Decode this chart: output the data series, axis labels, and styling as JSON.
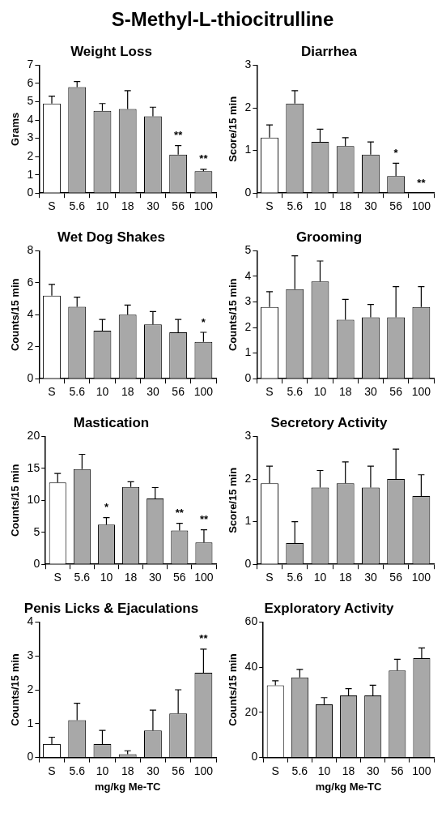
{
  "chart_data": [
    {
      "type": "other",
      "title": "S-Methyl-L-thiocitrulline"
    },
    {
      "type": "bar",
      "title": "Weight Loss",
      "ylabel": "Grams",
      "categories": [
        "S",
        "5.6",
        "10",
        "18",
        "30",
        "56",
        "100"
      ],
      "values": [
        4.9,
        5.8,
        4.5,
        4.6,
        4.2,
        2.1,
        1.2
      ],
      "errors": [
        0.4,
        0.3,
        0.4,
        1.0,
        0.5,
        0.5,
        0.1
      ],
      "colors": [
        "#ffffff",
        "#a8a8a8",
        "#a8a8a8",
        "#a8a8a8",
        "#a8a8a8",
        "#a8a8a8",
        "#a8a8a8"
      ],
      "ylim": [
        0,
        7
      ],
      "yticks": [
        0,
        1,
        2,
        3,
        4,
        5,
        6,
        7
      ],
      "grid": false,
      "legend": false,
      "annotations": [
        {
          "text": "**",
          "x": "56",
          "y": 2.6
        },
        {
          "text": "**",
          "x": "100",
          "y": 1.3
        }
      ]
    },
    {
      "type": "bar",
      "title": "Diarrhea",
      "ylabel": "Score/15 min",
      "categories": [
        "S",
        "5.6",
        "10",
        "18",
        "30",
        "56",
        "100"
      ],
      "values": [
        1.3,
        2.1,
        1.2,
        1.1,
        0.9,
        0.4,
        0
      ],
      "errors": [
        0.3,
        0.3,
        0.3,
        0.2,
        0.3,
        0.3,
        null
      ],
      "colors": [
        "#ffffff",
        "#a8a8a8",
        "#a8a8a8",
        "#a8a8a8",
        "#a8a8a8",
        "#a8a8a8",
        "#a8a8a8"
      ],
      "ylim": [
        0,
        3
      ],
      "yticks": [
        0,
        1,
        2,
        3
      ],
      "grid": false,
      "legend": false,
      "annotations": [
        {
          "text": "*",
          "x": "56",
          "y": 0.7
        },
        {
          "text": "**",
          "x": "100",
          "y": 0
        }
      ]
    },
    {
      "type": "bar",
      "title": "Wet Dog Shakes",
      "ylabel": "Counts/15 min",
      "categories": [
        "S",
        "5.6",
        "10",
        "18",
        "30",
        "56",
        "100"
      ],
      "values": [
        5.2,
        4.5,
        3.0,
        4.0,
        3.4,
        2.9,
        2.3
      ],
      "errors": [
        0.7,
        0.6,
        0.7,
        0.6,
        0.8,
        0.8,
        0.6
      ],
      "colors": [
        "#ffffff",
        "#a8a8a8",
        "#a8a8a8",
        "#a8a8a8",
        "#a8a8a8",
        "#a8a8a8",
        "#a8a8a8"
      ],
      "ylim": [
        0,
        8
      ],
      "yticks": [
        0,
        2,
        4,
        6,
        8
      ],
      "grid": false,
      "legend": false,
      "annotations": [
        {
          "text": "*",
          "x": "100",
          "y": 2.9
        }
      ]
    },
    {
      "type": "bar",
      "title": "Grooming",
      "ylabel": "Counts/15 min",
      "categories": [
        "S",
        "5.6",
        "10",
        "18",
        "30",
        "56",
        "100"
      ],
      "values": [
        2.8,
        3.5,
        3.8,
        2.3,
        2.4,
        2.4,
        2.8
      ],
      "errors": [
        0.6,
        1.3,
        0.8,
        0.8,
        0.5,
        1.2,
        0.8
      ],
      "colors": [
        "#ffffff",
        "#a8a8a8",
        "#a8a8a8",
        "#a8a8a8",
        "#a8a8a8",
        "#a8a8a8",
        "#a8a8a8"
      ],
      "ylim": [
        0,
        5
      ],
      "yticks": [
        0,
        1,
        2,
        3,
        4,
        5
      ],
      "grid": false,
      "legend": false
    },
    {
      "type": "bar",
      "title": "Mastication",
      "ylabel": "Counts/15 min",
      "categories": [
        "S",
        "5.6",
        "10",
        "18",
        "30",
        "56",
        "100"
      ],
      "values": [
        12.8,
        14.9,
        6.2,
        12.1,
        10.3,
        5.3,
        3.4
      ],
      "errors": [
        1.4,
        2.3,
        1.1,
        0.8,
        1.7,
        1.1,
        2.0
      ],
      "colors": [
        "#ffffff",
        "#a8a8a8",
        "#a8a8a8",
        "#a8a8a8",
        "#a8a8a8",
        "#a8a8a8",
        "#a8a8a8"
      ],
      "ylim": [
        0,
        20
      ],
      "yticks": [
        0,
        5,
        10,
        15,
        20
      ],
      "grid": false,
      "legend": false,
      "annotations": [
        {
          "text": "*",
          "x": "10",
          "y": 7.3
        },
        {
          "text": "**",
          "x": "56",
          "y": 6.4
        },
        {
          "text": "**",
          "x": "100",
          "y": 5.4
        }
      ]
    },
    {
      "type": "bar",
      "title": "Secretory Activity",
      "ylabel": "Score/15 min",
      "categories": [
        "S",
        "5.6",
        "10",
        "18",
        "30",
        "56",
        "100"
      ],
      "values": [
        1.9,
        0.5,
        1.8,
        1.9,
        1.8,
        2.0,
        1.6
      ],
      "errors": [
        0.4,
        0.5,
        0.4,
        0.5,
        0.5,
        0.7,
        0.5
      ],
      "colors": [
        "#ffffff",
        "#a8a8a8",
        "#a8a8a8",
        "#a8a8a8",
        "#a8a8a8",
        "#a8a8a8",
        "#a8a8a8"
      ],
      "ylim": [
        0,
        3
      ],
      "yticks": [
        0,
        1,
        2,
        3
      ],
      "grid": false,
      "legend": false
    },
    {
      "type": "bar",
      "title": "Penis Licks & Ejaculations",
      "ylabel": "Counts/15 min",
      "xlabel": "mg/kg Me-TC",
      "categories": [
        "S",
        "5.6",
        "10",
        "18",
        "30",
        "56",
        "100"
      ],
      "values": [
        0.4,
        1.1,
        0.4,
        0.1,
        0.8,
        1.3,
        2.5
      ],
      "errors": [
        0.2,
        0.5,
        0.4,
        0.1,
        0.6,
        0.7,
        0.7
      ],
      "colors": [
        "#ffffff",
        "#a8a8a8",
        "#a8a8a8",
        "#a8a8a8",
        "#a8a8a8",
        "#a8a8a8",
        "#a8a8a8"
      ],
      "ylim": [
        0,
        4
      ],
      "yticks": [
        0,
        1,
        2,
        3,
        4
      ],
      "grid": false,
      "legend": false,
      "annotations": [
        {
          "text": "**",
          "x": "100",
          "y": 3.2
        }
      ]
    },
    {
      "type": "bar",
      "title": "Exploratory Activity",
      "ylabel": "Counts/15 min",
      "xlabel": "mg/kg Me-TC",
      "categories": [
        "S",
        "5.6",
        "10",
        "18",
        "30",
        "56",
        "100"
      ],
      "values": [
        32,
        35.5,
        23.5,
        27.5,
        27.5,
        38.5,
        44
      ],
      "errors": [
        2,
        3.5,
        3,
        3,
        4.5,
        5,
        4.5
      ],
      "colors": [
        "#ffffff",
        "#a8a8a8",
        "#a8a8a8",
        "#a8a8a8",
        "#a8a8a8",
        "#a8a8a8",
        "#a8a8a8"
      ],
      "ylim": [
        0,
        60
      ],
      "yticks": [
        0,
        20,
        40,
        60
      ],
      "grid": false,
      "legend": false
    }
  ]
}
